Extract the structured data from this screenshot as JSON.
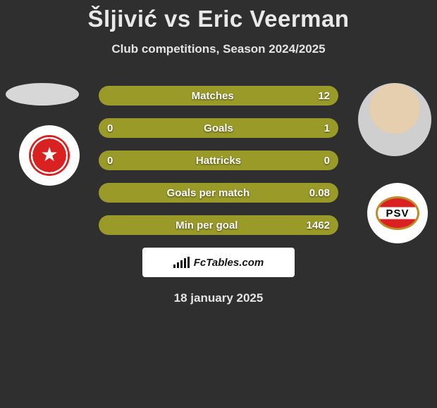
{
  "title": "Šljivić vs Eric Veerman",
  "subtitle": "Club competitions, Season 2024/2025",
  "date": "18 january 2025",
  "colors": {
    "background": "#2f2f2f",
    "bar": "#9a9a29",
    "text": "#ffffff"
  },
  "fctables_label": "FcTables.com",
  "player_left": {
    "name": "Šljivić",
    "club_badge": "red-star"
  },
  "player_right": {
    "name": "Eric Veerman",
    "club_badge": "psv"
  },
  "rows": [
    {
      "label": "Matches",
      "left": "",
      "right": "12",
      "hide_left": true
    },
    {
      "label": "Goals",
      "left": "0",
      "right": "1"
    },
    {
      "label": "Hattricks",
      "left": "0",
      "right": "0"
    },
    {
      "label": "Goals per match",
      "left": "",
      "right": "0.08",
      "hide_left": true
    },
    {
      "label": "Min per goal",
      "left": "",
      "right": "1462",
      "hide_left": true
    }
  ]
}
